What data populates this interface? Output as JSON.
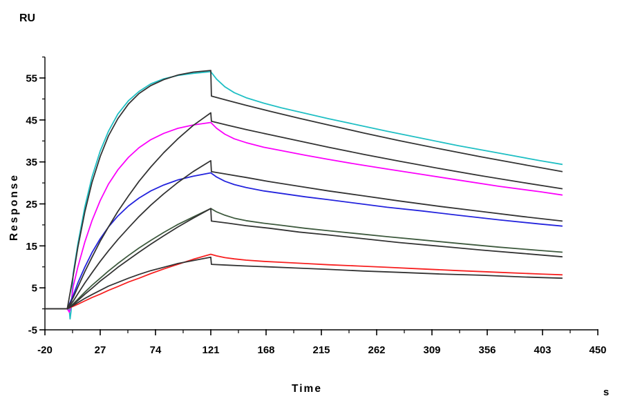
{
  "labels": {
    "y_unit": "RU",
    "y_axis_title": "Response",
    "x_axis_title": "Time",
    "x_unit": "s"
  },
  "chart_data": {
    "type": "line",
    "title": "",
    "xlabel": "Time",
    "x_unit": "s",
    "ylabel": "Response",
    "y_unit": "RU",
    "xlim": [
      -20,
      450
    ],
    "ylim": [
      -5,
      60
    ],
    "x_major_ticks": [
      -20,
      27,
      74,
      121,
      168,
      215,
      262,
      309,
      356,
      403,
      450
    ],
    "x_minor_ticks": [
      3.5,
      50.5,
      97.5,
      144.5,
      191.5,
      238.5,
      285.5,
      332.5,
      379.5,
      426.5
    ],
    "y_major_ticks": [
      55,
      45,
      35,
      25,
      15,
      5,
      -5
    ],
    "y_minor_ticks": [
      60,
      50,
      40,
      30,
      20,
      10,
      0
    ],
    "grid": false,
    "legend": false,
    "axis_color": "#000000",
    "association_end_s": 121,
    "series": [
      {
        "name": "measured-curve-cyan",
        "role": "measured",
        "color": "#1fbfc4",
        "points": [
          [
            -20,
            0
          ],
          [
            -1,
            0
          ],
          [
            0.6,
            0
          ],
          [
            1.4,
            -2.4
          ],
          [
            2.2,
            -0.6
          ],
          [
            4,
            8.4
          ],
          [
            8,
            15.5
          ],
          [
            14,
            24.4
          ],
          [
            20,
            31.4
          ],
          [
            27,
            37.6
          ],
          [
            34,
            42.3
          ],
          [
            42,
            46.4
          ],
          [
            51,
            49.6
          ],
          [
            60,
            51.8
          ],
          [
            70,
            53.6
          ],
          [
            81,
            54.8
          ],
          [
            93,
            55.6
          ],
          [
            106,
            56.1
          ],
          [
            121,
            56.5
          ],
          [
            126,
            54.7
          ],
          [
            133,
            52.9
          ],
          [
            141,
            51.5
          ],
          [
            151,
            50.3
          ],
          [
            166,
            49.0
          ],
          [
            181,
            47.9
          ],
          [
            201,
            46.6
          ],
          [
            221,
            45.3
          ],
          [
            246,
            43.8
          ],
          [
            271,
            42.3
          ],
          [
            301,
            40.6
          ],
          [
            331,
            38.9
          ],
          [
            366,
            37.1
          ],
          [
            401,
            35.3
          ],
          [
            420,
            34.4
          ]
        ]
      },
      {
        "name": "measured-curve-magenta",
        "role": "measured",
        "color": "#fb00fb",
        "points": [
          [
            -20,
            0
          ],
          [
            -1,
            0
          ],
          [
            0.8,
            -0.8
          ],
          [
            1.8,
            0.3
          ],
          [
            4,
            5.3
          ],
          [
            8,
            10.0
          ],
          [
            14,
            16.0
          ],
          [
            20,
            21.0
          ],
          [
            27,
            25.8
          ],
          [
            34,
            29.7
          ],
          [
            42,
            33.1
          ],
          [
            51,
            36.1
          ],
          [
            60,
            38.4
          ],
          [
            70,
            40.3
          ],
          [
            81,
            41.8
          ],
          [
            93,
            43.0
          ],
          [
            106,
            43.8
          ],
          [
            121,
            44.4
          ],
          [
            126,
            43.0
          ],
          [
            133,
            41.6
          ],
          [
            141,
            40.5
          ],
          [
            151,
            39.6
          ],
          [
            166,
            38.5
          ],
          [
            181,
            37.7
          ],
          [
            201,
            36.6
          ],
          [
            221,
            35.6
          ],
          [
            246,
            34.4
          ],
          [
            271,
            33.3
          ],
          [
            301,
            32.0
          ],
          [
            331,
            30.7
          ],
          [
            366,
            29.2
          ],
          [
            401,
            27.9
          ],
          [
            420,
            27.1
          ]
        ]
      },
      {
        "name": "measured-curve-blue",
        "role": "measured",
        "color": "#2323dd",
        "points": [
          [
            -20,
            0
          ],
          [
            -1,
            0
          ],
          [
            4,
            3.2
          ],
          [
            8,
            6.2
          ],
          [
            14,
            10.0
          ],
          [
            20,
            13.4
          ],
          [
            27,
            16.7
          ],
          [
            34,
            19.5
          ],
          [
            42,
            22.1
          ],
          [
            51,
            24.5
          ],
          [
            60,
            26.4
          ],
          [
            70,
            28.1
          ],
          [
            81,
            29.5
          ],
          [
            93,
            30.7
          ],
          [
            106,
            31.6
          ],
          [
            121,
            32.4
          ],
          [
            126,
            31.4
          ],
          [
            133,
            30.4
          ],
          [
            141,
            29.6
          ],
          [
            151,
            28.9
          ],
          [
            166,
            28.1
          ],
          [
            181,
            27.5
          ],
          [
            201,
            26.7
          ],
          [
            221,
            26.0
          ],
          [
            246,
            25.1
          ],
          [
            271,
            24.2
          ],
          [
            301,
            23.3
          ],
          [
            331,
            22.3
          ],
          [
            366,
            21.2
          ],
          [
            401,
            20.2
          ],
          [
            420,
            19.7
          ]
        ]
      },
      {
        "name": "measured-curve-dark-green",
        "role": "measured",
        "color": "#3e5a3e",
        "points": [
          [
            -20,
            0
          ],
          [
            -1,
            0
          ],
          [
            4,
            1.2
          ],
          [
            8,
            2.3
          ],
          [
            14,
            4.0
          ],
          [
            20,
            5.6
          ],
          [
            27,
            7.3
          ],
          [
            34,
            9.0
          ],
          [
            42,
            10.8
          ],
          [
            51,
            12.7
          ],
          [
            60,
            14.5
          ],
          [
            70,
            16.3
          ],
          [
            81,
            18.2
          ],
          [
            93,
            20.1
          ],
          [
            106,
            21.9
          ],
          [
            121,
            23.9
          ],
          [
            126,
            23.1
          ],
          [
            133,
            22.3
          ],
          [
            141,
            21.6
          ],
          [
            151,
            21.0
          ],
          [
            166,
            20.4
          ],
          [
            181,
            19.9
          ],
          [
            201,
            19.2
          ],
          [
            221,
            18.6
          ],
          [
            246,
            17.9
          ],
          [
            271,
            17.2
          ],
          [
            301,
            16.4
          ],
          [
            331,
            15.6
          ],
          [
            366,
            14.7
          ],
          [
            401,
            13.9
          ],
          [
            420,
            13.5
          ]
        ]
      },
      {
        "name": "measured-curve-red",
        "role": "measured",
        "color": "#f71f1f",
        "points": [
          [
            -20,
            0
          ],
          [
            -1,
            0
          ],
          [
            4,
            0.6
          ],
          [
            8,
            1.1
          ],
          [
            14,
            1.9
          ],
          [
            20,
            2.7
          ],
          [
            27,
            3.5
          ],
          [
            34,
            4.4
          ],
          [
            42,
            5.3
          ],
          [
            51,
            6.4
          ],
          [
            60,
            7.3
          ],
          [
            70,
            8.4
          ],
          [
            81,
            9.5
          ],
          [
            93,
            10.6
          ],
          [
            106,
            11.8
          ],
          [
            121,
            13.0
          ],
          [
            126,
            12.6
          ],
          [
            133,
            12.2
          ],
          [
            141,
            11.9
          ],
          [
            151,
            11.6
          ],
          [
            166,
            11.3
          ],
          [
            181,
            11.1
          ],
          [
            201,
            10.8
          ],
          [
            221,
            10.5
          ],
          [
            246,
            10.2
          ],
          [
            271,
            9.9
          ],
          [
            301,
            9.5
          ],
          [
            331,
            9.1
          ],
          [
            366,
            8.7
          ],
          [
            401,
            8.3
          ],
          [
            420,
            8.1
          ]
        ]
      },
      {
        "name": "fit-curve-1",
        "role": "fit",
        "color": "#333333",
        "points": [
          [
            -20,
            0
          ],
          [
            -1,
            0
          ],
          [
            4,
            7.9
          ],
          [
            8,
            14.7
          ],
          [
            14,
            23.2
          ],
          [
            20,
            30.1
          ],
          [
            27,
            36.3
          ],
          [
            34,
            41.2
          ],
          [
            42,
            45.3
          ],
          [
            51,
            48.8
          ],
          [
            60,
            51.3
          ],
          [
            70,
            53.2
          ],
          [
            81,
            54.6
          ],
          [
            93,
            55.7
          ],
          [
            106,
            56.4
          ],
          [
            121,
            56.8
          ],
          [
            121.5,
            50.7
          ],
          [
            136,
            49.6
          ],
          [
            151,
            48.5
          ],
          [
            171,
            47.1
          ],
          [
            196,
            45.4
          ],
          [
            221,
            43.8
          ],
          [
            251,
            41.9
          ],
          [
            281,
            40.1
          ],
          [
            316,
            38.1
          ],
          [
            351,
            36.2
          ],
          [
            386,
            34.4
          ],
          [
            420,
            32.7
          ]
        ]
      },
      {
        "name": "fit-curve-2",
        "role": "fit",
        "color": "#333333",
        "points": [
          [
            -20,
            0
          ],
          [
            -1,
            0
          ],
          [
            4,
            2.7
          ],
          [
            8,
            5.2
          ],
          [
            14,
            8.9
          ],
          [
            20,
            12.3
          ],
          [
            27,
            16.1
          ],
          [
            34,
            19.5
          ],
          [
            42,
            23.2
          ],
          [
            51,
            26.9
          ],
          [
            60,
            30.4
          ],
          [
            70,
            33.8
          ],
          [
            81,
            37.2
          ],
          [
            93,
            40.5
          ],
          [
            106,
            43.7
          ],
          [
            121,
            46.7
          ],
          [
            121.5,
            44.7
          ],
          [
            136,
            43.7
          ],
          [
            151,
            42.7
          ],
          [
            171,
            41.5
          ],
          [
            196,
            40.0
          ],
          [
            221,
            38.5
          ],
          [
            251,
            36.8
          ],
          [
            281,
            35.2
          ],
          [
            316,
            33.4
          ],
          [
            351,
            31.7
          ],
          [
            386,
            30.1
          ],
          [
            420,
            28.6
          ]
        ]
      },
      {
        "name": "fit-curve-3",
        "role": "fit",
        "color": "#333333",
        "points": [
          [
            -20,
            0
          ],
          [
            -1,
            0
          ],
          [
            4,
            1.8
          ],
          [
            8,
            3.6
          ],
          [
            14,
            6.2
          ],
          [
            20,
            8.6
          ],
          [
            27,
            11.3
          ],
          [
            34,
            13.8
          ],
          [
            42,
            16.5
          ],
          [
            51,
            19.3
          ],
          [
            60,
            22.0
          ],
          [
            70,
            24.7
          ],
          [
            81,
            27.4
          ],
          [
            93,
            30.1
          ],
          [
            106,
            32.7
          ],
          [
            121,
            35.3
          ],
          [
            121.5,
            32.7
          ],
          [
            136,
            32.0
          ],
          [
            151,
            31.3
          ],
          [
            171,
            30.3
          ],
          [
            196,
            29.2
          ],
          [
            221,
            28.1
          ],
          [
            251,
            26.9
          ],
          [
            281,
            25.7
          ],
          [
            316,
            24.4
          ],
          [
            351,
            23.2
          ],
          [
            386,
            22.0
          ],
          [
            420,
            20.9
          ]
        ]
      },
      {
        "name": "fit-curve-4",
        "role": "fit",
        "color": "#333333",
        "points": [
          [
            -20,
            0
          ],
          [
            -1,
            0
          ],
          [
            4,
            1.0
          ],
          [
            8,
            2.0
          ],
          [
            14,
            3.5
          ],
          [
            20,
            4.9
          ],
          [
            27,
            6.6
          ],
          [
            34,
            8.1
          ],
          [
            42,
            9.9
          ],
          [
            51,
            11.7
          ],
          [
            60,
            13.5
          ],
          [
            70,
            15.4
          ],
          [
            81,
            17.4
          ],
          [
            93,
            19.5
          ],
          [
            106,
            21.6
          ],
          [
            121,
            23.9
          ],
          [
            121.5,
            20.9
          ],
          [
            136,
            20.4
          ],
          [
            151,
            19.8
          ],
          [
            171,
            19.2
          ],
          [
            196,
            18.3
          ],
          [
            221,
            17.6
          ],
          [
            251,
            16.7
          ],
          [
            281,
            15.8
          ],
          [
            316,
            14.9
          ],
          [
            351,
            14.0
          ],
          [
            386,
            13.2
          ],
          [
            420,
            12.4
          ]
        ]
      },
      {
        "name": "fit-curve-5",
        "role": "fit",
        "color": "#333333",
        "points": [
          [
            -20,
            0
          ],
          [
            -1,
            0
          ],
          [
            4,
            0.8
          ],
          [
            8,
            1.5
          ],
          [
            14,
            2.5
          ],
          [
            20,
            3.4
          ],
          [
            27,
            4.4
          ],
          [
            34,
            5.4
          ],
          [
            42,
            6.3
          ],
          [
            51,
            7.3
          ],
          [
            60,
            8.2
          ],
          [
            70,
            9.1
          ],
          [
            81,
            9.9
          ],
          [
            93,
            10.8
          ],
          [
            106,
            11.5
          ],
          [
            121,
            12.3
          ],
          [
            121.5,
            10.6
          ],
          [
            136,
            10.4
          ],
          [
            151,
            10.2
          ],
          [
            171,
            10.0
          ],
          [
            196,
            9.7
          ],
          [
            221,
            9.4
          ],
          [
            251,
            9.0
          ],
          [
            281,
            8.7
          ],
          [
            316,
            8.3
          ],
          [
            351,
            8.0
          ],
          [
            386,
            7.6
          ],
          [
            420,
            7.3
          ]
        ]
      }
    ]
  }
}
